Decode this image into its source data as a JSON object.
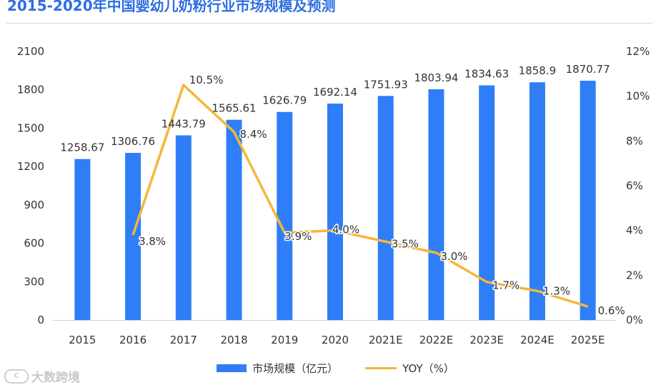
{
  "chart_data": {
    "type": "bar+line",
    "title": "2015-2020年中国婴幼儿奶粉行业市场规模及预测",
    "categories": [
      "2015",
      "2016",
      "2017",
      "2018",
      "2019",
      "2020",
      "2021E",
      "2022E",
      "2023E",
      "2024E",
      "2025E"
    ],
    "series": [
      {
        "name": "市场规模（亿元）",
        "type": "bar",
        "axis": "left",
        "values": [
          1258.67,
          1306.76,
          1443.79,
          1565.61,
          1626.79,
          1692.14,
          1751.93,
          1803.94,
          1834.63,
          1858.9,
          1870.77
        ],
        "labels": [
          "1258.67",
          "1306.76",
          "1443.79",
          "1565.61",
          "1626.79",
          "1692.14",
          "1751.93",
          "1803.94",
          "1834.63",
          "1858.9",
          "1870.77"
        ]
      },
      {
        "name": "YOY（%）",
        "type": "line",
        "axis": "right",
        "values": [
          null,
          3.8,
          10.5,
          8.4,
          3.9,
          4.0,
          3.5,
          3.0,
          1.7,
          1.3,
          0.6
        ],
        "labels": [
          null,
          "3.8%",
          "10.5%",
          "8.4%",
          "3.9%",
          "4.0%",
          "3.5%",
          "3.0%",
          "1.7%",
          "1.3%",
          "0.6%"
        ]
      }
    ],
    "y_left": {
      "range": [
        0,
        2100
      ],
      "ticks": [
        "0",
        "300",
        "600",
        "900",
        "1200",
        "1500",
        "1800",
        "2100"
      ]
    },
    "y_right": {
      "range": [
        0,
        12
      ],
      "ticks": [
        "0%",
        "2%",
        "4%",
        "6%",
        "8%",
        "10%",
        "12%"
      ]
    },
    "legend_position": "bottom-center",
    "grid": false
  },
  "colors": {
    "bar": "#2f7ef7",
    "line": "#f5b63b",
    "text": "#333333",
    "title": "#2f6fe0"
  },
  "watermark": {
    "logo_text": "C",
    "text": "大数跨境"
  }
}
